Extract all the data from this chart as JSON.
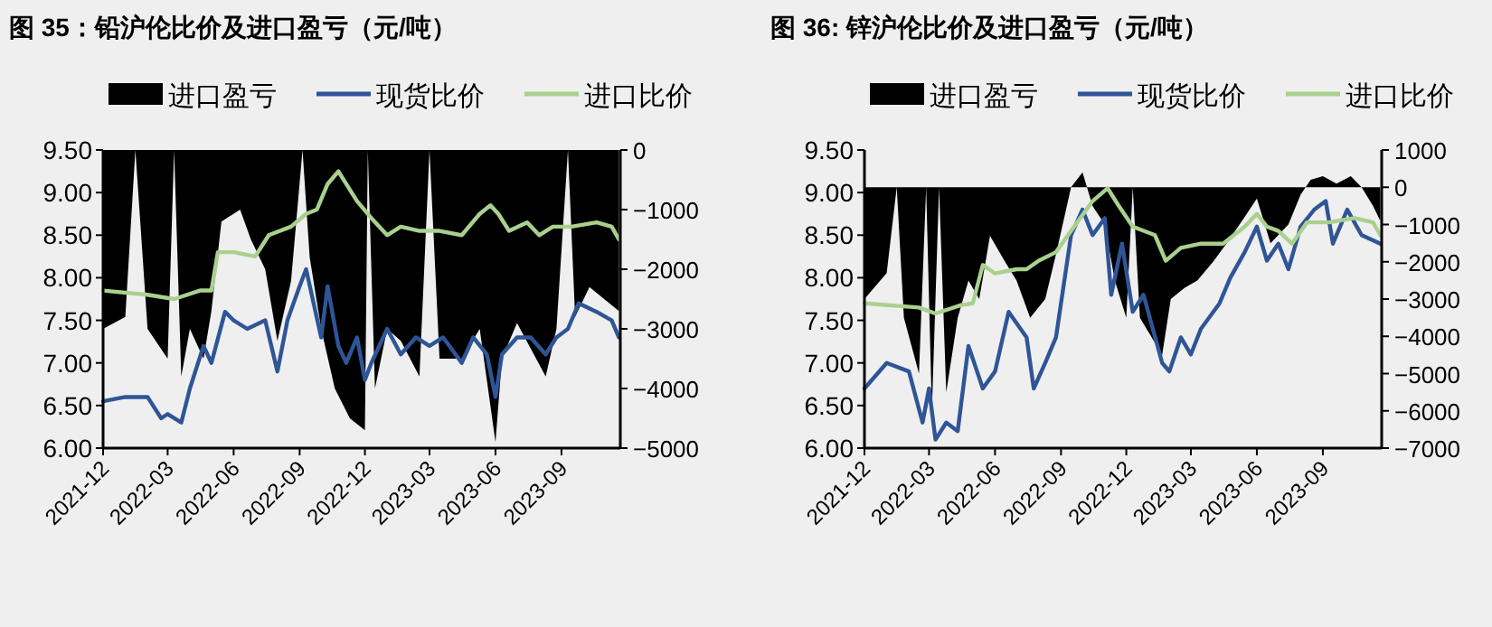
{
  "chart_data": [
    {
      "type": "line",
      "title": "图 35：铅沪伦比价及进口盈亏（元/吨）",
      "legend": "top",
      "grid": false,
      "xlim": [
        "2021-12-01",
        "2023-11-22"
      ],
      "xticks": [
        "2021-12",
        "2022-03",
        "2022-06",
        "2022-09",
        "2022-12",
        "2023-03",
        "2023-06",
        "2023-09"
      ],
      "ylim": [
        6,
        9.5
      ],
      "yticks": [
        {
          "value": 6,
          "label": "6.00"
        },
        {
          "value": 6.5,
          "label": "6.50"
        },
        {
          "value": 7,
          "label": "7.00"
        },
        {
          "value": 7.5,
          "label": "7.50"
        },
        {
          "value": 8,
          "label": "8.00"
        },
        {
          "value": 8.5,
          "label": "8.50"
        },
        {
          "value": 9,
          "label": "9.00"
        },
        {
          "value": 9.5,
          "label": "9.50"
        }
      ],
      "y2lim": [
        -5000,
        0
      ],
      "y2ticks": [
        -5000,
        -4000,
        -3000,
        -2000,
        -1000,
        0
      ],
      "series": [
        {
          "name": "进口盈亏",
          "type": "area",
          "axis": "y2",
          "color": "#000000",
          "x": [
            "2021-12-01",
            "2022-01-01",
            "2022-01-15",
            "2022-02-01",
            "2022-03-01",
            "2022-03-10",
            "2022-03-20",
            "2022-04-01",
            "2022-04-20",
            "2022-05-01",
            "2022-05-15",
            "2022-06-10",
            "2022-06-25",
            "2022-07-15",
            "2022-08-01",
            "2022-08-20",
            "2022-09-05",
            "2022-09-15",
            "2022-10-01",
            "2022-10-20",
            "2022-11-10",
            "2022-12-01",
            "2022-12-05",
            "2022-12-15",
            "2023-01-01",
            "2023-01-20",
            "2023-02-15",
            "2023-03-01",
            "2023-03-15",
            "2023-04-15",
            "2023-05-10",
            "2023-06-01",
            "2023-06-10",
            "2023-07-01",
            "2023-08-10",
            "2023-08-25",
            "2023-09-10",
            "2023-09-20",
            "2023-10-10",
            "2023-11-20"
          ],
          "values": [
            -3000,
            -2800,
            0,
            -3000,
            -3500,
            0,
            -3800,
            -3000,
            -3500,
            -2700,
            -1200,
            -1000,
            -1500,
            -2000,
            -3200,
            -2200,
            0,
            -1800,
            -3000,
            -4000,
            -4500,
            -4700,
            0,
            -4000,
            -3000,
            -3200,
            -3800,
            0,
            -3500,
            -3500,
            -3000,
            -4900,
            -3500,
            -2900,
            -3800,
            -3000,
            0,
            -2800,
            -2300,
            -2700
          ]
        },
        {
          "name": "现货比价",
          "color": "#2f5597",
          "x": [
            "2021-12-01",
            "2022-01-01",
            "2022-02-01",
            "2022-02-20",
            "2022-03-01",
            "2022-03-20",
            "2022-04-01",
            "2022-04-20",
            "2022-05-01",
            "2022-05-20",
            "2022-06-01",
            "2022-06-20",
            "2022-07-15",
            "2022-08-01",
            "2022-08-15",
            "2022-09-01",
            "2022-09-10",
            "2022-10-01",
            "2022-10-10",
            "2022-10-25",
            "2022-11-05",
            "2022-11-20",
            "2022-12-01",
            "2022-12-10",
            "2023-01-01",
            "2023-01-20",
            "2023-02-10",
            "2023-03-01",
            "2023-03-20",
            "2023-04-15",
            "2023-05-01",
            "2023-05-20",
            "2023-06-01",
            "2023-06-10",
            "2023-07-01",
            "2023-07-20",
            "2023-08-10",
            "2023-08-25",
            "2023-09-10",
            "2023-09-25",
            "2023-10-20",
            "2023-11-10",
            "2023-11-20"
          ],
          "values": [
            6.55,
            6.6,
            6.6,
            6.35,
            6.4,
            6.3,
            6.7,
            7.2,
            7.0,
            7.6,
            7.5,
            7.4,
            7.5,
            6.9,
            7.5,
            7.9,
            8.1,
            7.3,
            7.9,
            7.2,
            7.0,
            7.3,
            6.8,
            7.0,
            7.4,
            7.1,
            7.3,
            7.2,
            7.3,
            7.0,
            7.3,
            7.1,
            6.6,
            7.1,
            7.3,
            7.3,
            7.1,
            7.3,
            7.4,
            7.7,
            7.6,
            7.5,
            7.3
          ]
        },
        {
          "name": "进口比价",
          "color": "#a9d18e",
          "x": [
            "2021-12-01",
            "2022-02-01",
            "2022-03-10",
            "2022-04-15",
            "2022-05-01",
            "2022-05-10",
            "2022-06-01",
            "2022-07-01",
            "2022-07-20",
            "2022-08-20",
            "2022-09-10",
            "2022-09-25",
            "2022-10-10",
            "2022-10-25",
            "2022-11-05",
            "2022-11-20",
            "2022-12-10",
            "2023-01-01",
            "2023-01-20",
            "2023-02-15",
            "2023-03-15",
            "2023-04-15",
            "2023-05-10",
            "2023-05-25",
            "2023-06-05",
            "2023-06-20",
            "2023-07-15",
            "2023-08-01",
            "2023-08-20",
            "2023-09-15",
            "2023-10-20",
            "2023-11-10",
            "2023-11-20"
          ],
          "values": [
            7.85,
            7.8,
            7.75,
            7.85,
            7.85,
            8.3,
            8.3,
            8.25,
            8.5,
            8.6,
            8.75,
            8.8,
            9.1,
            9.25,
            9.1,
            8.9,
            8.7,
            8.5,
            8.6,
            8.55,
            8.55,
            8.5,
            8.75,
            8.85,
            8.75,
            8.55,
            8.65,
            8.5,
            8.6,
            8.6,
            8.65,
            8.6,
            8.45
          ]
        }
      ]
    },
    {
      "type": "line",
      "title": "图 36: 锌沪伦比价及进口盈亏（元/吨）",
      "legend": "top",
      "grid": false,
      "xlim": [
        "2021-12-01",
        "2023-11-22"
      ],
      "xticks": [
        "2021-12",
        "2022-03",
        "2022-06",
        "2022-09",
        "2022-12",
        "2023-03",
        "2023-06",
        "2023-09"
      ],
      "ylim": [
        6,
        9.5
      ],
      "yticks": [
        {
          "value": 6,
          "label": "6.00"
        },
        {
          "value": 6.5,
          "label": "6.50"
        },
        {
          "value": 7,
          "label": "7.00"
        },
        {
          "value": 7.5,
          "label": "7.50"
        },
        {
          "value": 8,
          "label": "8.00"
        },
        {
          "value": 8.5,
          "label": "8.50"
        },
        {
          "value": 9,
          "label": "9.00"
        },
        {
          "value": 9.5,
          "label": "9.50"
        }
      ],
      "y2lim": [
        -7000,
        1000
      ],
      "y2ticks": [
        -7000,
        -6000,
        -5000,
        -4000,
        -3000,
        -2000,
        -1000,
        0,
        1000
      ],
      "series": [
        {
          "name": "进口盈亏",
          "type": "area",
          "axis": "y2",
          "color": "#000000",
          "x": [
            "2021-12-01",
            "2022-01-01",
            "2022-01-15",
            "2022-01-25",
            "2022-02-15",
            "2022-02-25",
            "2022-03-05",
            "2022-03-15",
            "2022-03-25",
            "2022-04-10",
            "2022-04-25",
            "2022-05-10",
            "2022-05-25",
            "2022-06-15",
            "2022-07-01",
            "2022-07-20",
            "2022-08-10",
            "2022-08-25",
            "2022-09-15",
            "2022-10-01",
            "2022-10-15",
            "2022-11-01",
            "2022-11-15",
            "2022-12-01",
            "2022-12-10",
            "2022-12-20",
            "2023-01-20",
            "2023-02-01",
            "2023-02-20",
            "2023-03-10",
            "2023-04-01",
            "2023-04-20",
            "2023-05-15",
            "2023-06-01",
            "2023-06-20",
            "2023-07-15",
            "2023-08-01",
            "2023-08-15",
            "2023-09-01",
            "2023-09-20",
            "2023-10-10",
            "2023-10-25",
            "2023-11-10",
            "2023-11-20"
          ],
          "values": [
            -3000,
            -2300,
            0,
            -3500,
            -5000,
            0,
            -6000,
            0,
            -5500,
            -3500,
            -2500,
            -3000,
            -1300,
            -2000,
            -2500,
            -3500,
            -3000,
            -1800,
            0,
            400,
            -500,
            -1000,
            -2500,
            -3500,
            0,
            -3500,
            -4500,
            -3000,
            -2700,
            -2500,
            -2000,
            -1500,
            -800,
            -300,
            -1500,
            -1000,
            -200,
            200,
            300,
            100,
            300,
            0,
            -500,
            -900
          ]
        },
        {
          "name": "现货比价",
          "color": "#2f5597",
          "x": [
            "2021-12-01",
            "2022-01-01",
            "2022-02-01",
            "2022-02-20",
            "2022-03-01",
            "2022-03-10",
            "2022-03-25",
            "2022-04-10",
            "2022-04-25",
            "2022-05-15",
            "2022-06-01",
            "2022-06-20",
            "2022-07-15",
            "2022-07-25",
            "2022-08-10",
            "2022-08-25",
            "2022-09-15",
            "2022-10-01",
            "2022-10-15",
            "2022-11-01",
            "2022-11-10",
            "2022-11-25",
            "2022-12-10",
            "2022-12-25",
            "2023-01-20",
            "2023-01-30",
            "2023-02-15",
            "2023-03-01",
            "2023-03-15",
            "2023-04-10",
            "2023-04-25",
            "2023-05-15",
            "2023-06-01",
            "2023-06-15",
            "2023-07-01",
            "2023-07-15",
            "2023-08-01",
            "2023-08-20",
            "2023-09-05",
            "2023-09-15",
            "2023-10-05",
            "2023-10-25",
            "2023-11-20"
          ],
          "values": [
            6.7,
            7.0,
            6.9,
            6.3,
            6.7,
            6.1,
            6.3,
            6.2,
            7.2,
            6.7,
            6.9,
            7.6,
            7.3,
            6.7,
            7.0,
            7.3,
            8.5,
            8.8,
            8.5,
            8.7,
            7.8,
            8.4,
            7.6,
            7.8,
            7.0,
            6.9,
            7.3,
            7.1,
            7.4,
            7.7,
            8.0,
            8.3,
            8.6,
            8.2,
            8.4,
            8.1,
            8.6,
            8.8,
            8.9,
            8.4,
            8.8,
            8.5,
            8.4
          ]
        },
        {
          "name": "进口比价",
          "color": "#a9d18e",
          "x": [
            "2021-12-01",
            "2022-02-15",
            "2022-03-10",
            "2022-04-15",
            "2022-05-01",
            "2022-05-15",
            "2022-06-01",
            "2022-07-01",
            "2022-07-15",
            "2022-08-01",
            "2022-08-25",
            "2022-09-15",
            "2022-10-15",
            "2022-11-05",
            "2022-11-20",
            "2022-12-10",
            "2023-01-10",
            "2023-01-25",
            "2023-02-15",
            "2023-03-15",
            "2023-04-15",
            "2023-05-15",
            "2023-06-01",
            "2023-06-15",
            "2023-07-01",
            "2023-07-20",
            "2023-08-10",
            "2023-09-10",
            "2023-10-15",
            "2023-11-10",
            "2023-11-20"
          ],
          "values": [
            7.7,
            7.65,
            7.58,
            7.68,
            7.7,
            8.15,
            8.05,
            8.1,
            8.1,
            8.2,
            8.3,
            8.55,
            8.9,
            9.05,
            8.85,
            8.6,
            8.5,
            8.2,
            8.35,
            8.4,
            8.4,
            8.6,
            8.75,
            8.6,
            8.55,
            8.4,
            8.65,
            8.65,
            8.7,
            8.65,
            8.5
          ]
        }
      ]
    }
  ]
}
